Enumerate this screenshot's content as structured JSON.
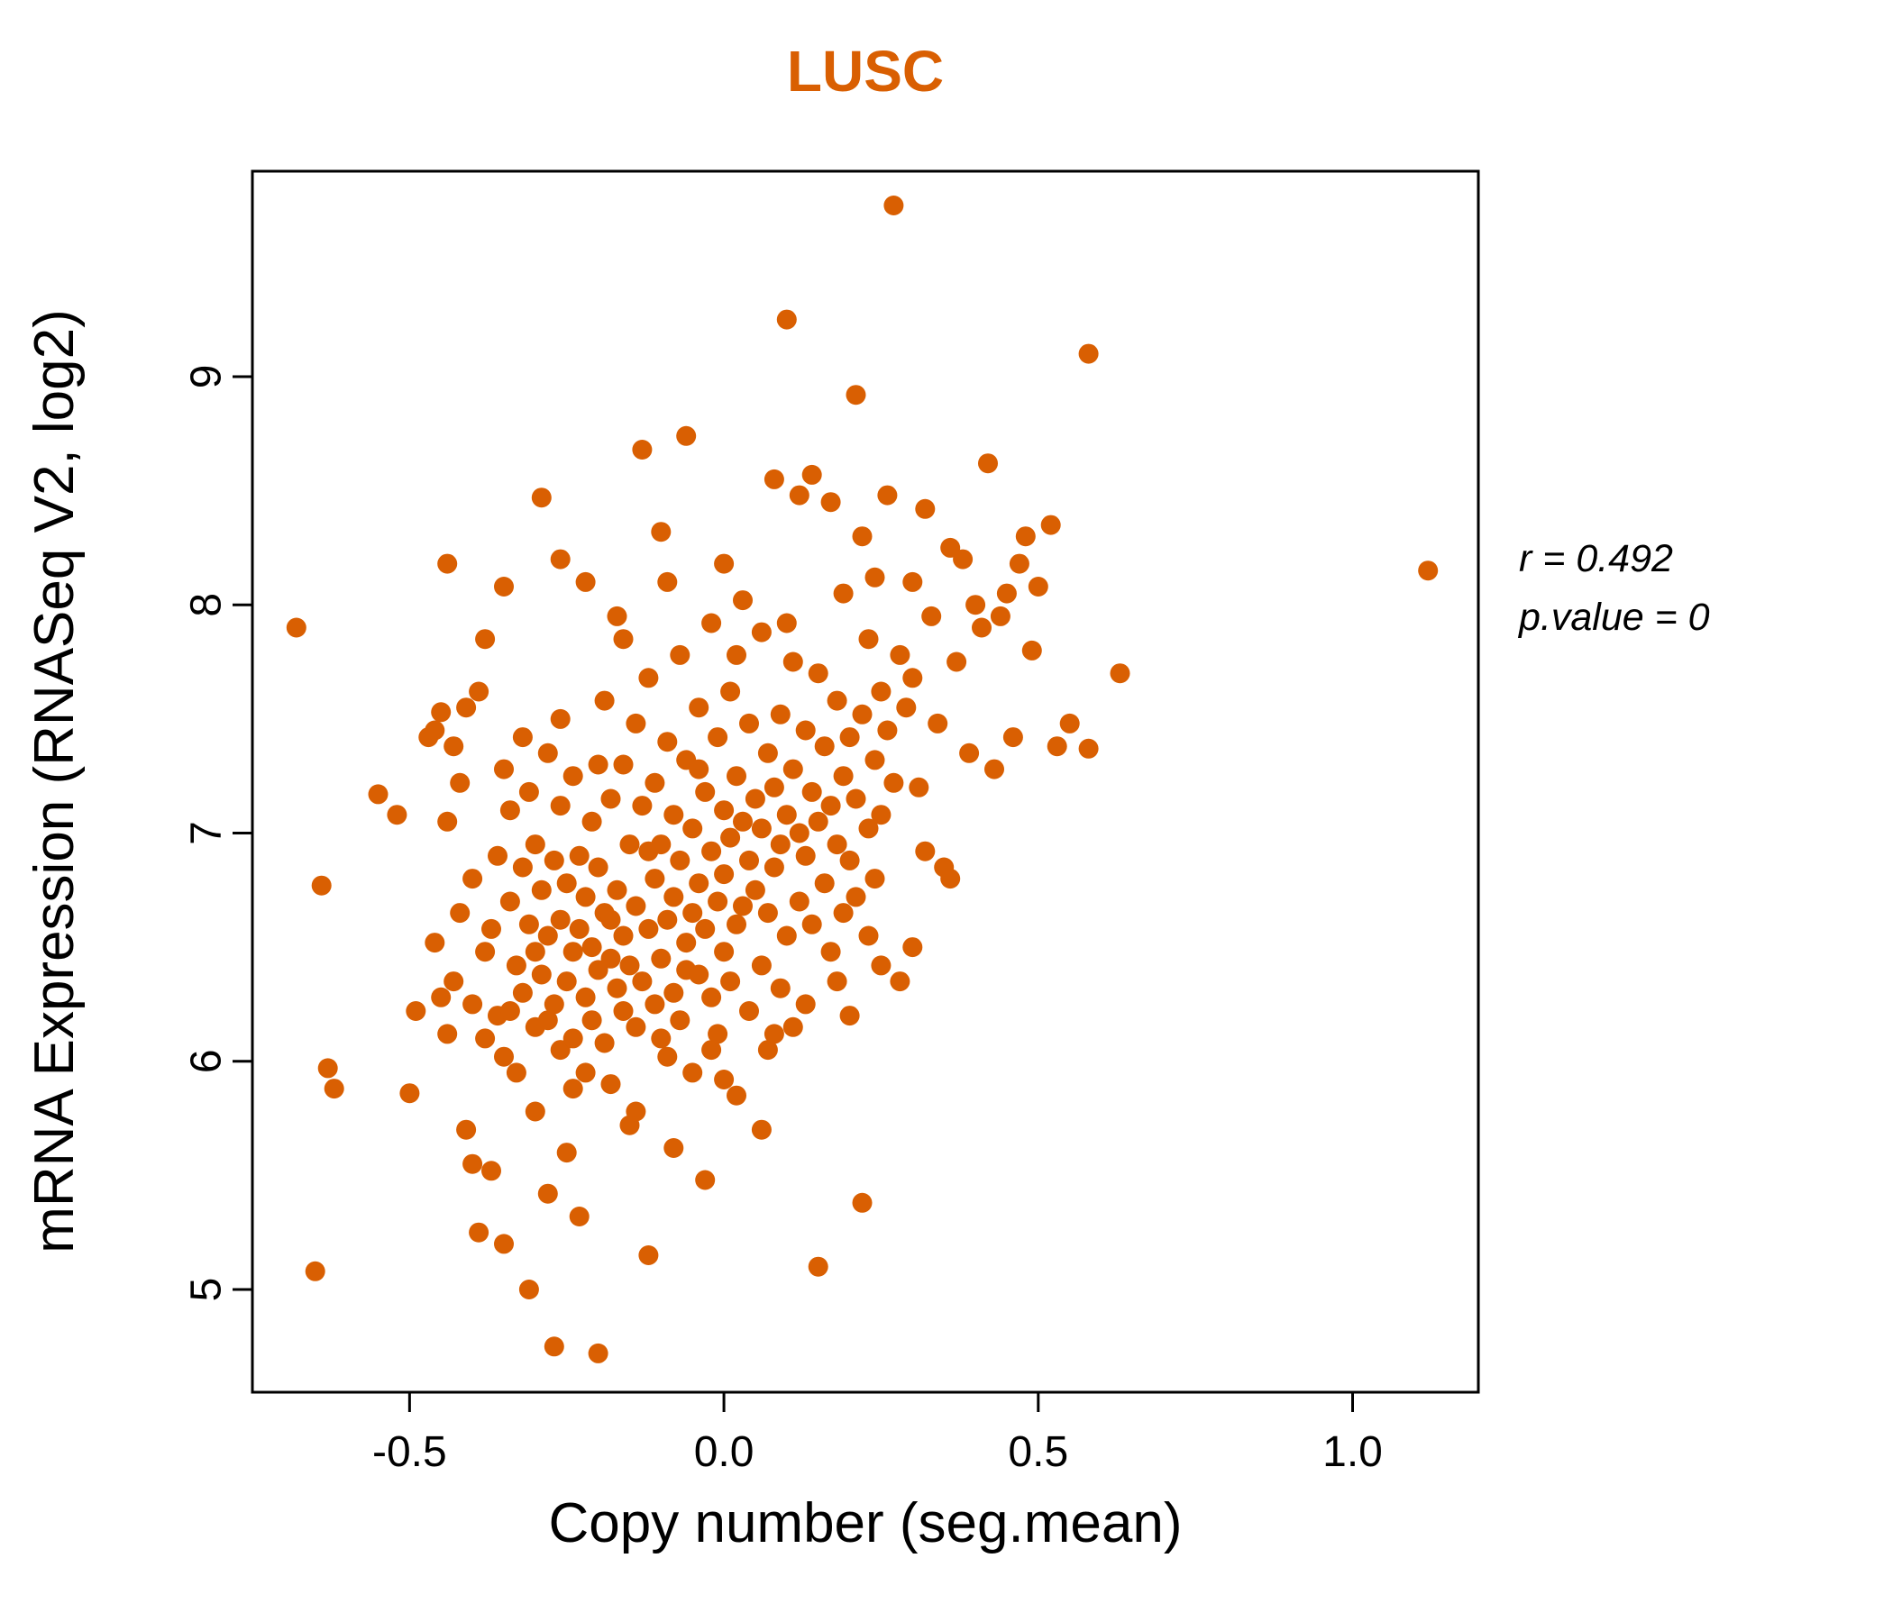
{
  "colors": {
    "accent_orange": "#D95F02",
    "axis_black": "#000000",
    "background": "#ffffff"
  },
  "annotation": {
    "line1": "r = 0.492",
    "line2": "p.value = 0"
  },
  "chart_data": {
    "type": "scatter",
    "title": "LUSC",
    "xlabel": "Copy number (seg.mean)",
    "ylabel": "mRNA Expression (RNASeq V2, log2)",
    "xlim": [
      -0.75,
      1.2
    ],
    "ylim": [
      4.55,
      9.9
    ],
    "xticks": [
      {
        "v": -0.5,
        "label": "-0.5"
      },
      {
        "v": 0.0,
        "label": "0.0"
      },
      {
        "v": 0.5,
        "label": "0.5"
      },
      {
        "v": 1.0,
        "label": "1.0"
      }
    ],
    "yticks": [
      {
        "v": 5,
        "label": "5"
      },
      {
        "v": 6,
        "label": "6"
      },
      {
        "v": 7,
        "label": "7"
      },
      {
        "v": 8,
        "label": "8"
      },
      {
        "v": 9,
        "label": "9"
      }
    ],
    "grid": false,
    "legend": "none",
    "point_color": "#D95F02",
    "point_radius": 11,
    "correlation_r": 0.492,
    "p_value": 0,
    "points": [
      [
        -0.68,
        7.9
      ],
      [
        -0.65,
        5.08
      ],
      [
        -0.64,
        6.77
      ],
      [
        -0.63,
        5.97
      ],
      [
        -0.62,
        5.88
      ],
      [
        -0.55,
        7.17
      ],
      [
        -0.52,
        7.08
      ],
      [
        -0.5,
        5.86
      ],
      [
        -0.49,
        6.22
      ],
      [
        -0.47,
        7.42
      ],
      [
        -0.46,
        7.45
      ],
      [
        -0.46,
        6.52
      ],
      [
        -0.45,
        6.28
      ],
      [
        -0.45,
        7.53
      ],
      [
        -0.44,
        8.18
      ],
      [
        -0.44,
        6.12
      ],
      [
        -0.44,
        7.05
      ],
      [
        -0.43,
        6.35
      ],
      [
        -0.43,
        7.38
      ],
      [
        -0.42,
        6.65
      ],
      [
        -0.42,
        7.22
      ],
      [
        -0.41,
        5.7
      ],
      [
        -0.41,
        7.55
      ],
      [
        -0.4,
        6.8
      ],
      [
        -0.4,
        6.25
      ],
      [
        -0.4,
        5.55
      ],
      [
        -0.39,
        7.62
      ],
      [
        -0.39,
        5.25
      ],
      [
        -0.38,
        6.48
      ],
      [
        -0.38,
        7.85
      ],
      [
        -0.38,
        6.1
      ],
      [
        -0.37,
        6.58
      ],
      [
        -0.37,
        5.52
      ],
      [
        -0.36,
        6.9
      ],
      [
        -0.36,
        6.2
      ],
      [
        -0.35,
        7.28
      ],
      [
        -0.35,
        6.02
      ],
      [
        -0.35,
        5.2
      ],
      [
        -0.35,
        8.08
      ],
      [
        -0.34,
        6.7
      ],
      [
        -0.34,
        7.1
      ],
      [
        -0.34,
        6.22
      ],
      [
        -0.33,
        6.42
      ],
      [
        -0.33,
        5.95
      ],
      [
        -0.32,
        6.85
      ],
      [
        -0.32,
        6.3
      ],
      [
        -0.32,
        7.42
      ],
      [
        -0.31,
        5.0
      ],
      [
        -0.31,
        7.18
      ],
      [
        -0.31,
        6.6
      ],
      [
        -0.3,
        6.95
      ],
      [
        -0.3,
        6.15
      ],
      [
        -0.3,
        5.78
      ],
      [
        -0.3,
        6.48
      ],
      [
        -0.29,
        8.47
      ],
      [
        -0.29,
        6.75
      ],
      [
        -0.29,
        6.38
      ],
      [
        -0.28,
        7.35
      ],
      [
        -0.28,
        6.55
      ],
      [
        -0.28,
        5.42
      ],
      [
        -0.28,
        6.18
      ],
      [
        -0.27,
        4.75
      ],
      [
        -0.27,
        6.88
      ],
      [
        -0.27,
        6.25
      ],
      [
        -0.26,
        7.5
      ],
      [
        -0.26,
        6.62
      ],
      [
        -0.26,
        6.05
      ],
      [
        -0.26,
        8.2
      ],
      [
        -0.26,
        7.12
      ],
      [
        -0.25,
        6.78
      ],
      [
        -0.25,
        6.35
      ],
      [
        -0.25,
        5.6
      ],
      [
        -0.24,
        7.25
      ],
      [
        -0.24,
        6.48
      ],
      [
        -0.24,
        6.1
      ],
      [
        -0.24,
        5.88
      ],
      [
        -0.23,
        6.9
      ],
      [
        -0.23,
        6.58
      ],
      [
        -0.23,
        5.32
      ],
      [
        -0.22,
        8.1
      ],
      [
        -0.22,
        6.72
      ],
      [
        -0.22,
        6.28
      ],
      [
        -0.22,
        5.95
      ],
      [
        -0.21,
        7.05
      ],
      [
        -0.21,
        6.5
      ],
      [
        -0.21,
        6.18
      ],
      [
        -0.2,
        4.72
      ],
      [
        -0.2,
        6.85
      ],
      [
        -0.2,
        6.4
      ],
      [
        -0.2,
        7.3
      ],
      [
        -0.19,
        7.58
      ],
      [
        -0.19,
        6.65
      ],
      [
        -0.19,
        6.08
      ],
      [
        -0.18,
        7.15
      ],
      [
        -0.18,
        6.45
      ],
      [
        -0.18,
        5.9
      ],
      [
        -0.18,
        6.62
      ],
      [
        -0.17,
        7.95
      ],
      [
        -0.17,
        6.75
      ],
      [
        -0.17,
        6.32
      ],
      [
        -0.16,
        7.3
      ],
      [
        -0.16,
        6.55
      ],
      [
        -0.16,
        6.22
      ],
      [
        -0.16,
        7.85
      ],
      [
        -0.15,
        6.95
      ],
      [
        -0.15,
        6.42
      ],
      [
        -0.15,
        5.72
      ],
      [
        -0.14,
        7.48
      ],
      [
        -0.14,
        6.68
      ],
      [
        -0.14,
        6.15
      ],
      [
        -0.14,
        5.78
      ],
      [
        -0.13,
        8.68
      ],
      [
        -0.13,
        7.12
      ],
      [
        -0.13,
        6.35
      ],
      [
        -0.12,
        7.68
      ],
      [
        -0.12,
        6.58
      ],
      [
        -0.12,
        5.15
      ],
      [
        -0.12,
        6.92
      ],
      [
        -0.11,
        7.22
      ],
      [
        -0.11,
        6.8
      ],
      [
        -0.11,
        6.25
      ],
      [
        -0.1,
        8.32
      ],
      [
        -0.1,
        6.95
      ],
      [
        -0.1,
        6.45
      ],
      [
        -0.1,
        6.1
      ],
      [
        -0.09,
        7.4
      ],
      [
        -0.09,
        6.62
      ],
      [
        -0.09,
        6.02
      ],
      [
        -0.09,
        8.1
      ],
      [
        -0.08,
        7.08
      ],
      [
        -0.08,
        6.72
      ],
      [
        -0.08,
        6.3
      ],
      [
        -0.08,
        5.62
      ],
      [
        -0.07,
        7.78
      ],
      [
        -0.07,
        6.88
      ],
      [
        -0.07,
        6.18
      ],
      [
        -0.06,
        8.74
      ],
      [
        -0.06,
        7.32
      ],
      [
        -0.06,
        6.52
      ],
      [
        -0.06,
        6.4
      ],
      [
        -0.05,
        7.02
      ],
      [
        -0.05,
        6.65
      ],
      [
        -0.05,
        5.95
      ],
      [
        -0.04,
        7.55
      ],
      [
        -0.04,
        6.78
      ],
      [
        -0.04,
        6.38
      ],
      [
        -0.04,
        7.28
      ],
      [
        -0.03,
        7.18
      ],
      [
        -0.03,
        6.58
      ],
      [
        -0.03,
        5.48
      ],
      [
        -0.02,
        7.92
      ],
      [
        -0.02,
        6.92
      ],
      [
        -0.02,
        6.28
      ],
      [
        -0.02,
        6.05
      ],
      [
        -0.01,
        7.42
      ],
      [
        -0.01,
        6.7
      ],
      [
        -0.01,
        6.12
      ],
      [
        0.0,
        7.1
      ],
      [
        0.0,
        6.82
      ],
      [
        0.0,
        6.48
      ],
      [
        0.0,
        5.92
      ],
      [
        0.0,
        8.18
      ],
      [
        0.01,
        7.62
      ],
      [
        0.01,
        6.98
      ],
      [
        0.01,
        6.35
      ],
      [
        0.02,
        7.25
      ],
      [
        0.02,
        6.6
      ],
      [
        0.02,
        5.85
      ],
      [
        0.02,
        7.78
      ],
      [
        0.03,
        8.02
      ],
      [
        0.03,
        7.05
      ],
      [
        0.03,
        6.68
      ],
      [
        0.04,
        7.48
      ],
      [
        0.04,
        6.88
      ],
      [
        0.04,
        6.22
      ],
      [
        0.05,
        7.15
      ],
      [
        0.05,
        6.75
      ],
      [
        0.06,
        7.88
      ],
      [
        0.06,
        7.02
      ],
      [
        0.06,
        6.42
      ],
      [
        0.06,
        5.7
      ],
      [
        0.07,
        7.35
      ],
      [
        0.07,
        6.65
      ],
      [
        0.07,
        6.05
      ],
      [
        0.08,
        8.55
      ],
      [
        0.08,
        7.2
      ],
      [
        0.08,
        6.85
      ],
      [
        0.08,
        6.12
      ],
      [
        0.09,
        7.52
      ],
      [
        0.09,
        6.95
      ],
      [
        0.09,
        6.32
      ],
      [
        0.1,
        9.25
      ],
      [
        0.1,
        7.08
      ],
      [
        0.1,
        6.55
      ],
      [
        0.1,
        7.92
      ],
      [
        0.11,
        7.75
      ],
      [
        0.11,
        7.28
      ],
      [
        0.11,
        6.15
      ],
      [
        0.12,
        8.48
      ],
      [
        0.12,
        7.0
      ],
      [
        0.12,
        6.7
      ],
      [
        0.13,
        7.45
      ],
      [
        0.13,
        6.9
      ],
      [
        0.13,
        6.25
      ],
      [
        0.14,
        8.57
      ],
      [
        0.14,
        7.18
      ],
      [
        0.14,
        6.6
      ],
      [
        0.15,
        7.7
      ],
      [
        0.15,
        7.05
      ],
      [
        0.15,
        5.1
      ],
      [
        0.16,
        7.38
      ],
      [
        0.16,
        6.78
      ],
      [
        0.17,
        8.45
      ],
      [
        0.17,
        7.12
      ],
      [
        0.17,
        6.48
      ],
      [
        0.18,
        7.58
      ],
      [
        0.18,
        6.95
      ],
      [
        0.18,
        6.35
      ],
      [
        0.19,
        8.05
      ],
      [
        0.19,
        7.25
      ],
      [
        0.19,
        6.65
      ],
      [
        0.2,
        7.42
      ],
      [
        0.2,
        6.88
      ],
      [
        0.2,
        6.2
      ],
      [
        0.21,
        8.92
      ],
      [
        0.21,
        7.15
      ],
      [
        0.21,
        6.72
      ],
      [
        0.22,
        8.3
      ],
      [
        0.22,
        7.52
      ],
      [
        0.22,
        5.38
      ],
      [
        0.23,
        7.85
      ],
      [
        0.23,
        7.02
      ],
      [
        0.23,
        6.55
      ],
      [
        0.24,
        8.12
      ],
      [
        0.24,
        7.32
      ],
      [
        0.24,
        6.8
      ],
      [
        0.25,
        7.62
      ],
      [
        0.25,
        7.08
      ],
      [
        0.25,
        6.42
      ],
      [
        0.26,
        8.48
      ],
      [
        0.26,
        7.45
      ],
      [
        0.27,
        9.75
      ],
      [
        0.27,
        7.22
      ],
      [
        0.28,
        7.78
      ],
      [
        0.28,
        6.35
      ],
      [
        0.29,
        7.55
      ],
      [
        0.3,
        7.68
      ],
      [
        0.3,
        6.5
      ],
      [
        0.3,
        8.1
      ],
      [
        0.31,
        7.2
      ],
      [
        0.32,
        8.42
      ],
      [
        0.32,
        6.92
      ],
      [
        0.33,
        7.95
      ],
      [
        0.34,
        7.48
      ],
      [
        0.35,
        6.85
      ],
      [
        0.36,
        8.25
      ],
      [
        0.36,
        6.8
      ],
      [
        0.37,
        7.75
      ],
      [
        0.38,
        8.2
      ],
      [
        0.39,
        7.35
      ],
      [
        0.4,
        8.0
      ],
      [
        0.41,
        7.9
      ],
      [
        0.42,
        8.62
      ],
      [
        0.43,
        7.28
      ],
      [
        0.44,
        7.95
      ],
      [
        0.45,
        8.05
      ],
      [
        0.46,
        7.42
      ],
      [
        0.47,
        8.18
      ],
      [
        0.48,
        8.3
      ],
      [
        0.49,
        7.8
      ],
      [
        0.5,
        8.08
      ],
      [
        0.52,
        8.35
      ],
      [
        0.53,
        7.38
      ],
      [
        0.55,
        7.48
      ],
      [
        0.58,
        9.1
      ],
      [
        0.58,
        7.37
      ],
      [
        0.63,
        7.7
      ],
      [
        1.12,
        8.15
      ]
    ]
  }
}
